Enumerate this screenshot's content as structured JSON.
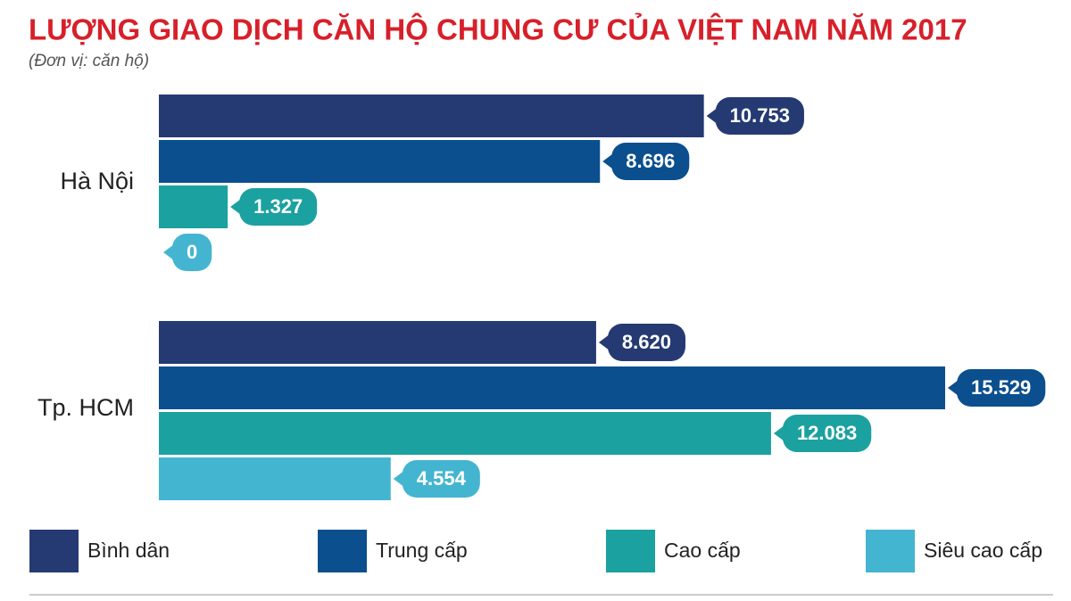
{
  "chart_data": {
    "type": "hbar",
    "title": "LƯỢNG GIAO DỊCH CĂN HỘ CHUNG CƯ CỦA VIỆT NAM NĂM 2017",
    "subtitle": "(Đơn vị: căn hộ)",
    "categories": [
      "Hà Nội",
      "Tp. HCM"
    ],
    "series": [
      {
        "name": "Bình dân",
        "color": "#253a73",
        "values": [
          10753,
          8620
        ],
        "value_labels": [
          "10.753",
          "8.620"
        ]
      },
      {
        "name": "Trung cấp",
        "color": "#0b4f8e",
        "values": [
          8696,
          15529
        ],
        "value_labels": [
          "8.696",
          "15.529"
        ]
      },
      {
        "name": "Cao cấp",
        "color": "#1ba1a0",
        "values": [
          1327,
          12083
        ],
        "value_labels": [
          "1.327",
          "12.083"
        ]
      },
      {
        "name": "Siêu cao cấp",
        "color": "#44b5d0",
        "values": [
          0,
          4554
        ],
        "value_labels": [
          "0",
          "4.554"
        ]
      }
    ]
  }
}
